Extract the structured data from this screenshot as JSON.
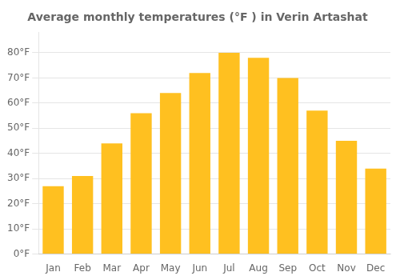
{
  "chart_data": {
    "type": "bar",
    "title": "Average monthly temperatures (°F ) in Verin Artashat",
    "categories": [
      "Jan",
      "Feb",
      "Mar",
      "Apr",
      "May",
      "Jun",
      "Jul",
      "Aug",
      "Sep",
      "Oct",
      "Nov",
      "Dec"
    ],
    "values": [
      27,
      31,
      44,
      56,
      64,
      72,
      80,
      78,
      70,
      57,
      45,
      34
    ],
    "color": "#FFC020",
    "ylim": [
      0,
      88
    ],
    "yticks": [
      {
        "value": 0,
        "label": "0°F"
      },
      {
        "value": 10,
        "label": "10°F"
      },
      {
        "value": 20,
        "label": "20°F"
      },
      {
        "value": 30,
        "label": "30°F"
      },
      {
        "value": 40,
        "label": "40°F"
      },
      {
        "value": 50,
        "label": "50°F"
      },
      {
        "value": 60,
        "label": "60°F"
      },
      {
        "value": 70,
        "label": "70°F"
      },
      {
        "value": 80,
        "label": "80°F"
      }
    ],
    "grid": true
  }
}
